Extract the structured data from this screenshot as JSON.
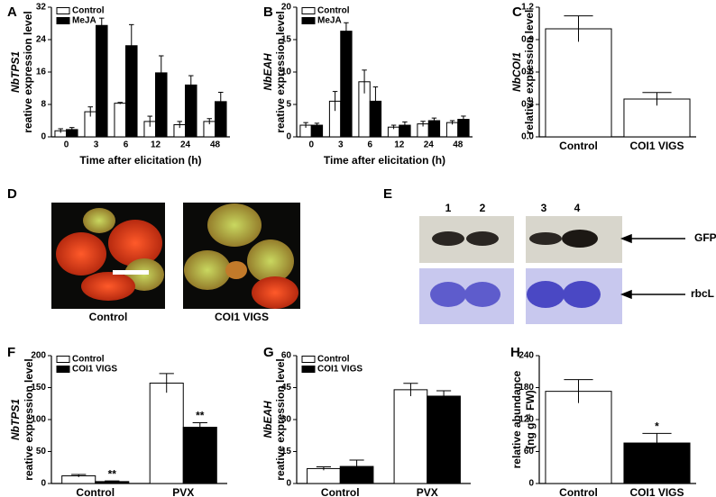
{
  "chart_data": [
    {
      "type": "bar",
      "panel": "A",
      "ylabel": [
        "NbTPS1",
        "reative expression level"
      ],
      "xlabel": "Time after elicitation (h)",
      "categories": [
        "0",
        "3",
        "6",
        "12",
        "24",
        "48"
      ],
      "legend": "upper left",
      "series": [
        {
          "name": "Control",
          "color": "#ffffff",
          "values": [
            1.5,
            6.2,
            8.3,
            3.8,
            3.0,
            3.8
          ],
          "errors": [
            0.5,
            1.2,
            0.2,
            1.3,
            0.8,
            0.7
          ]
        },
        {
          "name": "MeJA",
          "color": "#000000",
          "values": [
            1.8,
            27.5,
            22.5,
            15.8,
            12.8,
            8.7
          ],
          "errors": [
            0.5,
            1.8,
            5.2,
            4.2,
            2.3,
            2.3
          ]
        }
      ],
      "ylim": [
        0,
        32
      ],
      "yticks": [
        0,
        8,
        16,
        24,
        32
      ]
    },
    {
      "type": "bar",
      "panel": "B",
      "ylabel": [
        "NbEAH",
        "reative expression level"
      ],
      "xlabel": "Time after elicitation (h)",
      "categories": [
        "0",
        "3",
        "6",
        "12",
        "24",
        "48"
      ],
      "legend": "upper left",
      "series": [
        {
          "name": "Control",
          "color": "#ffffff",
          "values": [
            1.8,
            5.5,
            8.5,
            1.5,
            2.0,
            2.2
          ],
          "errors": [
            0.4,
            1.5,
            1.8,
            0.3,
            0.4,
            0.3
          ]
        },
        {
          "name": "MeJA",
          "color": "#000000",
          "values": [
            1.8,
            16.3,
            5.5,
            1.8,
            2.5,
            2.7
          ],
          "errors": [
            0.3,
            1.3,
            2.2,
            0.5,
            0.4,
            0.5
          ]
        }
      ],
      "ylim": [
        0,
        20
      ],
      "yticks": [
        0,
        5,
        10,
        15,
        20
      ]
    },
    {
      "type": "bar",
      "panel": "C",
      "ylabel": [
        "NbCOI1",
        "relative expression level"
      ],
      "categories": [
        "Control",
        "COI1 VIGS"
      ],
      "values": [
        1.0,
        0.35
      ],
      "errors": [
        0.12,
        0.06
      ],
      "colors": [
        "#ffffff",
        "#ffffff"
      ],
      "ylim": [
        0,
        1.2
      ],
      "yticks": [
        {
          "value": 0,
          "label": "0.0"
        },
        0.3,
        0.6,
        0.9,
        1.2
      ]
    },
    {
      "type": "bar",
      "panel": "F",
      "ylabel": [
        "NbTPS1",
        "reative expression level"
      ],
      "categories": [
        "Control",
        "PVX"
      ],
      "legend": "upper left",
      "series": [
        {
          "name": "Control",
          "color": "#ffffff",
          "values": [
            12,
            157
          ],
          "errors": [
            2,
            15
          ]
        },
        {
          "name": "COI1 VIGS",
          "color": "#000000",
          "values": [
            3,
            88
          ],
          "errors": [
            1,
            7
          ]
        }
      ],
      "annotations": [
        "**",
        "**"
      ],
      "ylim": [
        0,
        200
      ],
      "yticks": [
        0,
        50,
        100,
        150,
        200
      ]
    },
    {
      "type": "bar",
      "panel": "G",
      "ylabel": [
        "NbEAH",
        "reative expression level"
      ],
      "categories": [
        "Control",
        "PVX"
      ],
      "legend": "upper left",
      "series": [
        {
          "name": "Control",
          "color": "#ffffff",
          "values": [
            7,
            44
          ],
          "errors": [
            0.8,
            3
          ]
        },
        {
          "name": "COI1 VIGS",
          "color": "#000000",
          "values": [
            8,
            41
          ],
          "errors": [
            3,
            2.5
          ]
        }
      ],
      "ylim": [
        0,
        60
      ],
      "yticks": [
        0,
        15,
        30,
        45,
        60
      ]
    },
    {
      "type": "bar",
      "panel": "H",
      "ylabel": [
        "relative abundance",
        "(ng g⁻¹ FW)"
      ],
      "categories": [
        "Control",
        "COI1 VIGS"
      ],
      "values": [
        173,
        76
      ],
      "errors": [
        22,
        18
      ],
      "colors": [
        "#ffffff",
        "#000000"
      ],
      "annotations": [
        "*"
      ],
      "ylim": [
        0,
        240
      ],
      "yticks": [
        0,
        60,
        120,
        180,
        240
      ]
    }
  ],
  "photo_panel": {
    "panel": "D",
    "captions": [
      "Control",
      "COI1 VIGS"
    ]
  },
  "blot_panel": {
    "panel": "E",
    "lanes": [
      "1",
      "2",
      "3",
      "4"
    ],
    "markers": [
      "GFP",
      "rbcL"
    ]
  }
}
